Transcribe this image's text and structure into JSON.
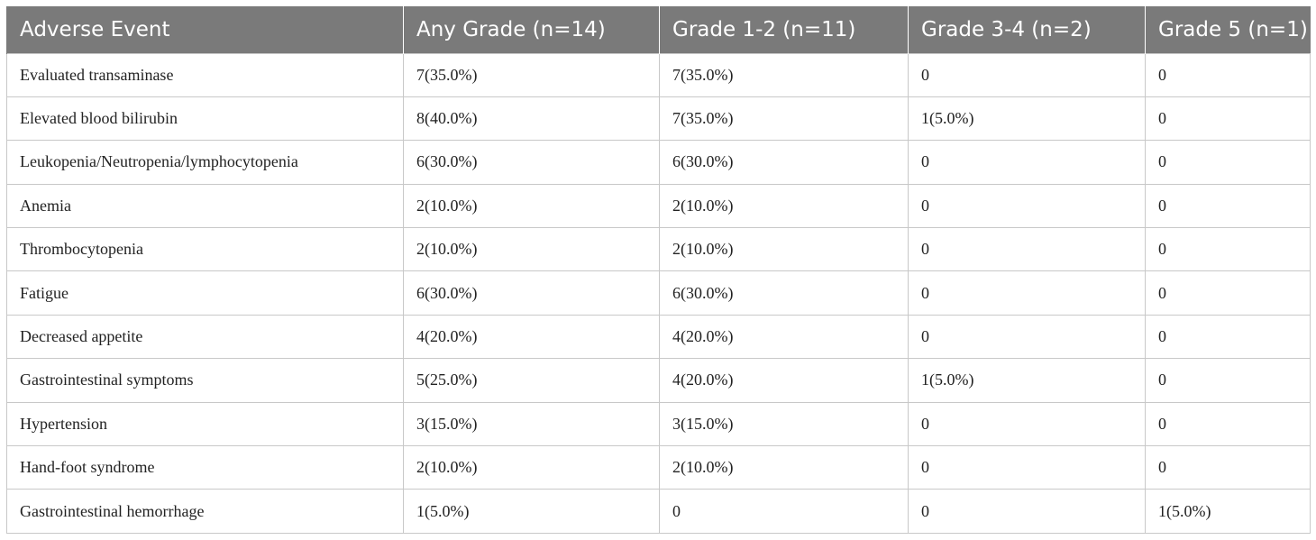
{
  "table": {
    "headers": [
      "Adverse Event",
      "Any Grade (n=14)",
      "Grade 1-2 (n=11)",
      "Grade 3-4 (n=2)",
      "Grade 5 (n=1)"
    ],
    "rows": [
      [
        "Evaluated transaminase",
        "7(35.0%)",
        "7(35.0%)",
        "0",
        "0"
      ],
      [
        "Elevated blood bilirubin",
        "8(40.0%)",
        "7(35.0%)",
        "1(5.0%)",
        "0"
      ],
      [
        "Leukopenia/Neutropenia/lymphocytopenia",
        "6(30.0%)",
        "6(30.0%)",
        "0",
        "0"
      ],
      [
        "Anemia",
        "2(10.0%)",
        "2(10.0%)",
        "0",
        "0"
      ],
      [
        "Thrombocytopenia",
        "2(10.0%)",
        "2(10.0%)",
        "0",
        "0"
      ],
      [
        "Fatigue",
        "6(30.0%)",
        "6(30.0%)",
        "0",
        "0"
      ],
      [
        "Decreased appetite",
        "4(20.0%)",
        "4(20.0%)",
        "0",
        "0"
      ],
      [
        "Gastrointestinal symptoms",
        "5(25.0%)",
        "4(20.0%)",
        "1(5.0%)",
        "0"
      ],
      [
        "Hypertension",
        "3(15.0%)",
        "3(15.0%)",
        "0",
        "0"
      ],
      [
        "Hand-foot syndrome",
        "2(10.0%)",
        "2(10.0%)",
        "0",
        "0"
      ],
      [
        "Gastrointestinal hemorrhage",
        "1(5.0%)",
        "0",
        "0",
        "1(5.0%)"
      ]
    ]
  },
  "colors": {
    "header_background": "#7a7a7a",
    "header_text": "#ffffff",
    "grid_line": "#c8c8c8"
  }
}
